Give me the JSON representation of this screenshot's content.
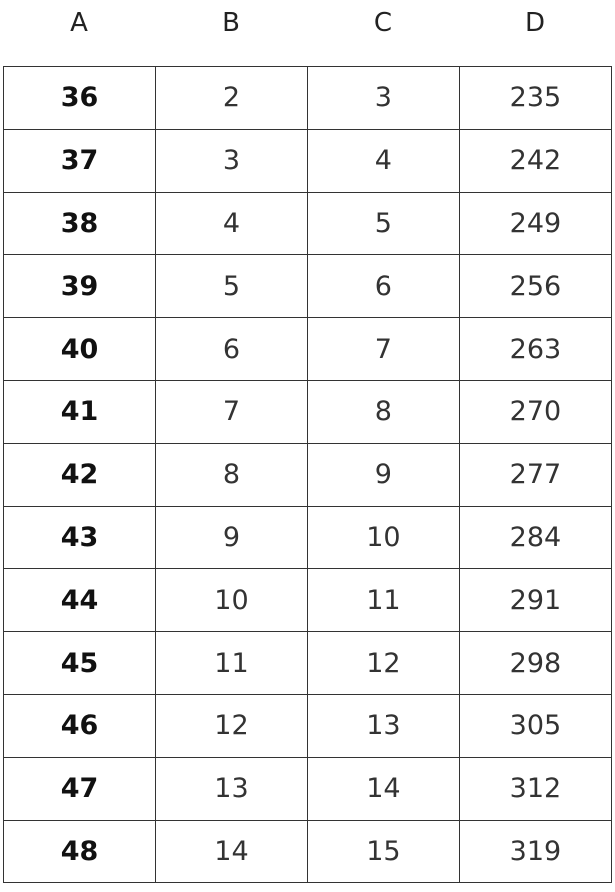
{
  "columns": [
    "A",
    "B",
    "C",
    "D"
  ],
  "rows": [
    [
      "36",
      "2",
      "3",
      "235"
    ],
    [
      "37",
      "3",
      "4",
      "242"
    ],
    [
      "38",
      "4",
      "5",
      "249"
    ],
    [
      "39",
      "5",
      "6",
      "256"
    ],
    [
      "40",
      "6",
      "7",
      "263"
    ],
    [
      "41",
      "7",
      "8",
      "270"
    ],
    [
      "42",
      "8",
      "9",
      "277"
    ],
    [
      "43",
      "9",
      "10",
      "284"
    ],
    [
      "44",
      "10",
      "11",
      "291"
    ],
    [
      "45",
      "11",
      "12",
      "298"
    ],
    [
      "46",
      "12",
      "13",
      "305"
    ],
    [
      "47",
      "13",
      "14",
      "312"
    ],
    [
      "48",
      "14",
      "15",
      "319"
    ]
  ]
}
